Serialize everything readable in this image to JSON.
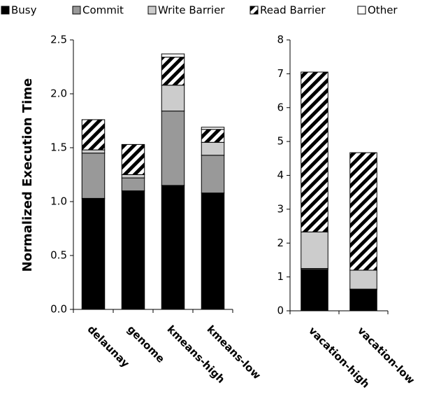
{
  "chart_data": [
    {
      "type": "bar",
      "stacked": true,
      "ylabel": "Normalized Execution Time",
      "categories": [
        "delaunay",
        "genome",
        "kmeans-high",
        "kmeans-low"
      ],
      "ylim": [
        0,
        2.5
      ],
      "yticks": [
        {
          "value": 0,
          "label": "0.0"
        },
        0.5,
        {
          "value": 1,
          "label": "1.0"
        },
        1.5,
        {
          "value": 2,
          "label": "2.0"
        },
        2.5
      ],
      "series": [
        {
          "name": "Busy",
          "color": "#000000",
          "values": [
            1.03,
            1.1,
            1.15,
            1.08
          ]
        },
        {
          "name": "Commit",
          "color": "#999999",
          "values": [
            0.42,
            0.12,
            0.69,
            0.35
          ]
        },
        {
          "name": "Write Barrier",
          "color": "#cccccc",
          "values": [
            0.03,
            0.03,
            0.24,
            0.12
          ]
        },
        {
          "name": "Read Barrier",
          "color": "#000000",
          "hatch": "diagonal",
          "values": [
            0.28,
            0.28,
            0.26,
            0.12
          ]
        },
        {
          "name": "Other",
          "color": "#ffffff",
          "values": [
            0,
            0,
            0.03,
            0.02
          ]
        }
      ]
    },
    {
      "type": "bar",
      "stacked": true,
      "categories": [
        "vacation-high",
        "vacation-low"
      ],
      "ylim": [
        0,
        8
      ],
      "yticks": [
        0,
        1,
        2,
        3,
        4,
        5,
        6,
        7,
        8
      ],
      "series": [
        {
          "color": "#000000",
          "values": [
            1.22,
            0.62
          ]
        },
        {
          "color": "#999999",
          "values": [
            0.03,
            0.02
          ]
        },
        {
          "color": "#cccccc",
          "values": [
            1.08,
            0.56
          ]
        },
        {
          "color": "#000000",
          "hatch": "diagonal",
          "values": [
            4.72,
            3.47
          ]
        },
        {
          "color": "#ffffff",
          "values": [
            0,
            0
          ]
        }
      ]
    }
  ]
}
